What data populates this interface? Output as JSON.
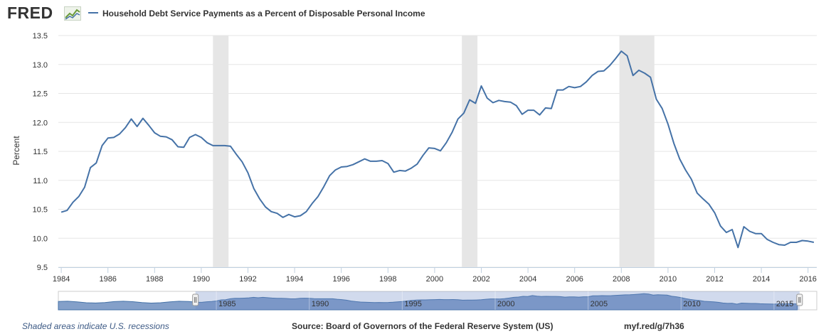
{
  "logo": {
    "text": "FRED"
  },
  "legend": {
    "label": "Household Debt Service Payments as a Percent of Disposable Personal Income"
  },
  "footer": {
    "recession_note": "Shaded areas indicate U.S. recessions",
    "source": "Source: Board of Governors of the Federal Reserve System (US)",
    "short_url": "myf.red/g/7h36"
  },
  "colors": {
    "line": "#4572a7",
    "recession": "#e6e6e6",
    "navigator": "#6f8fc0"
  },
  "chart_data": {
    "type": "line",
    "title": "Household Debt Service Payments as a Percent of Disposable Personal Income",
    "ylabel": "Percent",
    "xlabel": "",
    "ylim": [
      9.5,
      13.5
    ],
    "xlim": [
      1983.875,
      2016.375
    ],
    "yticks": [
      "9.5",
      "10.0",
      "10.5",
      "11.0",
      "11.5",
      "12.0",
      "12.5",
      "13.0",
      "13.5"
    ],
    "xticks": [
      "1984",
      "1986",
      "1988",
      "1990",
      "1992",
      "1994",
      "1996",
      "1998",
      "2000",
      "2002",
      "2004",
      "2006",
      "2008",
      "2010",
      "2012",
      "2014",
      "2016"
    ],
    "navigator_labels": [
      "1985",
      "1990",
      "1995",
      "2000",
      "2005",
      "2010",
      "2015"
    ],
    "recessions": [
      [
        1990.5,
        1991.167
      ],
      [
        2001.167,
        2001.833
      ],
      [
        2007.917,
        2009.417
      ]
    ],
    "series": [
      {
        "name": "Household Debt Service Payments as a Percent of Disposable Personal Income",
        "x": [
          1984.0,
          1984.25,
          1984.5,
          1984.75,
          1985.0,
          1985.25,
          1985.5,
          1985.75,
          1986.0,
          1986.25,
          1986.5,
          1986.75,
          1987.0,
          1987.25,
          1987.5,
          1987.75,
          1988.0,
          1988.25,
          1988.5,
          1988.75,
          1989.0,
          1989.25,
          1989.5,
          1989.75,
          1990.0,
          1990.25,
          1990.5,
          1990.75,
          1991.0,
          1991.25,
          1991.5,
          1991.75,
          1992.0,
          1992.25,
          1992.5,
          1992.75,
          1993.0,
          1993.25,
          1993.5,
          1993.75,
          1994.0,
          1994.25,
          1994.5,
          1994.75,
          1995.0,
          1995.25,
          1995.5,
          1995.75,
          1996.0,
          1996.25,
          1996.5,
          1996.75,
          1997.0,
          1997.25,
          1997.5,
          1997.75,
          1998.0,
          1998.25,
          1998.5,
          1998.75,
          1999.0,
          1999.25,
          1999.5,
          1999.75,
          2000.0,
          2000.25,
          2000.5,
          2000.75,
          2001.0,
          2001.25,
          2001.5,
          2001.75,
          2002.0,
          2002.25,
          2002.5,
          2002.75,
          2003.0,
          2003.25,
          2003.5,
          2003.75,
          2004.0,
          2004.25,
          2004.5,
          2004.75,
          2005.0,
          2005.25,
          2005.5,
          2005.75,
          2006.0,
          2006.25,
          2006.5,
          2006.75,
          2007.0,
          2007.25,
          2007.5,
          2007.75,
          2008.0,
          2008.25,
          2008.5,
          2008.75,
          2009.0,
          2009.25,
          2009.5,
          2009.75,
          2010.0,
          2010.25,
          2010.5,
          2010.75,
          2011.0,
          2011.25,
          2011.5,
          2011.75,
          2012.0,
          2012.25,
          2012.5,
          2012.75,
          2013.0,
          2013.25,
          2013.5,
          2013.75,
          2014.0,
          2014.25,
          2014.5,
          2014.75,
          2015.0,
          2015.25,
          2015.5,
          2015.75,
          2016.0,
          2016.25
        ],
        "values": [
          10.45,
          10.48,
          10.62,
          10.72,
          10.88,
          11.22,
          11.3,
          11.6,
          11.73,
          11.74,
          11.8,
          11.91,
          12.06,
          11.93,
          12.07,
          11.95,
          11.82,
          11.76,
          11.75,
          11.7,
          11.58,
          11.57,
          11.74,
          11.79,
          11.74,
          11.65,
          11.6,
          11.6,
          11.6,
          11.59,
          11.45,
          11.32,
          11.13,
          10.86,
          10.68,
          10.54,
          10.46,
          10.43,
          10.36,
          10.41,
          10.37,
          10.39,
          10.46,
          10.6,
          10.72,
          10.89,
          11.08,
          11.18,
          11.23,
          11.24,
          11.27,
          11.32,
          11.37,
          11.33,
          11.33,
          11.34,
          11.29,
          11.14,
          11.17,
          11.16,
          11.21,
          11.28,
          11.43,
          11.56,
          11.55,
          11.51,
          11.65,
          11.83,
          12.06,
          12.16,
          12.39,
          12.33,
          12.63,
          12.42,
          12.34,
          12.38,
          12.36,
          12.35,
          12.29,
          12.14,
          12.21,
          12.21,
          12.13,
          12.25,
          12.24,
          12.56,
          12.56,
          12.62,
          12.6,
          12.62,
          12.7,
          12.81,
          12.88,
          12.89,
          12.98,
          13.1,
          13.23,
          13.15,
          12.81,
          12.9,
          12.85,
          12.78,
          12.4,
          12.24,
          11.97,
          11.64,
          11.37,
          11.18,
          11.02,
          10.78,
          10.68,
          10.59,
          10.44,
          10.21,
          10.1,
          10.15,
          9.84,
          10.2,
          10.12,
          10.08,
          10.08,
          9.98,
          9.93,
          9.89,
          9.88,
          9.93,
          9.93,
          9.96,
          9.95,
          9.93
        ]
      }
    ]
  }
}
